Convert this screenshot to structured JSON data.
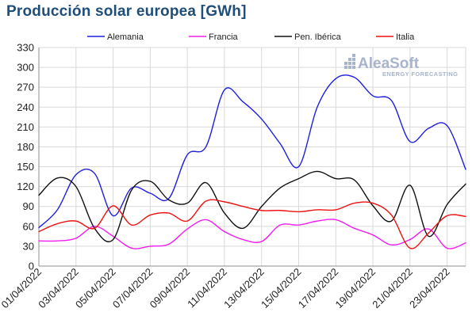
{
  "chart_data": {
    "type": "line",
    "title": "Producción solar europea [GWh]",
    "ylim": [
      0,
      330
    ],
    "yticks": [
      0,
      30,
      60,
      90,
      120,
      150,
      180,
      210,
      240,
      270,
      300,
      330
    ],
    "x": [
      "01/04/2022",
      "02/04/2022",
      "03/04/2022",
      "04/04/2022",
      "05/04/2022",
      "06/04/2022",
      "07/04/2022",
      "08/04/2022",
      "09/04/2022",
      "10/04/2022",
      "11/04/2022",
      "12/04/2022",
      "13/04/2022",
      "14/04/2022",
      "15/04/2022",
      "16/04/2022",
      "17/04/2022",
      "18/04/2022",
      "19/04/2022",
      "20/04/2022",
      "21/04/2022",
      "22/04/2022",
      "23/04/2022",
      "24/04/2022"
    ],
    "xtick_labels": [
      "01/04/2022",
      "03/04/2022",
      "05/04/2022",
      "07/04/2022",
      "09/04/2022",
      "11/04/2022",
      "13/04/2022",
      "15/04/2022",
      "17/04/2022",
      "19/04/2022",
      "21/04/2022",
      "23/04/2022"
    ],
    "grid": true,
    "legend_position": "top",
    "series": [
      {
        "name": "Alemania",
        "color": "#1f1fe0",
        "values": [
          58,
          85,
          138,
          140,
          76,
          118,
          110,
          102,
          168,
          180,
          266,
          248,
          222,
          185,
          150,
          240,
          283,
          285,
          257,
          250,
          188,
          208,
          212,
          146
        ]
      },
      {
        "name": "Francia",
        "color": "#f01ef0",
        "values": [
          38,
          38,
          42,
          60,
          45,
          27,
          30,
          33,
          56,
          70,
          52,
          40,
          37,
          62,
          62,
          68,
          70,
          57,
          47,
          32,
          40,
          56,
          27,
          35
        ]
      },
      {
        "name": "Pen. Ibérica",
        "color": "#111111",
        "values": [
          107,
          133,
          120,
          57,
          40,
          115,
          128,
          100,
          95,
          126,
          80,
          57,
          90,
          118,
          132,
          143,
          132,
          130,
          91,
          68,
          122,
          45,
          93,
          124
        ]
      },
      {
        "name": "Italia",
        "color": "#ee1111",
        "values": [
          52,
          64,
          68,
          57,
          91,
          62,
          77,
          80,
          68,
          98,
          97,
          90,
          84,
          84,
          82,
          85,
          85,
          95,
          95,
          77,
          27,
          50,
          76,
          75
        ]
      }
    ]
  },
  "logo": {
    "name": "AleaSoft",
    "tagline": "ENERGY FORECASTING"
  }
}
